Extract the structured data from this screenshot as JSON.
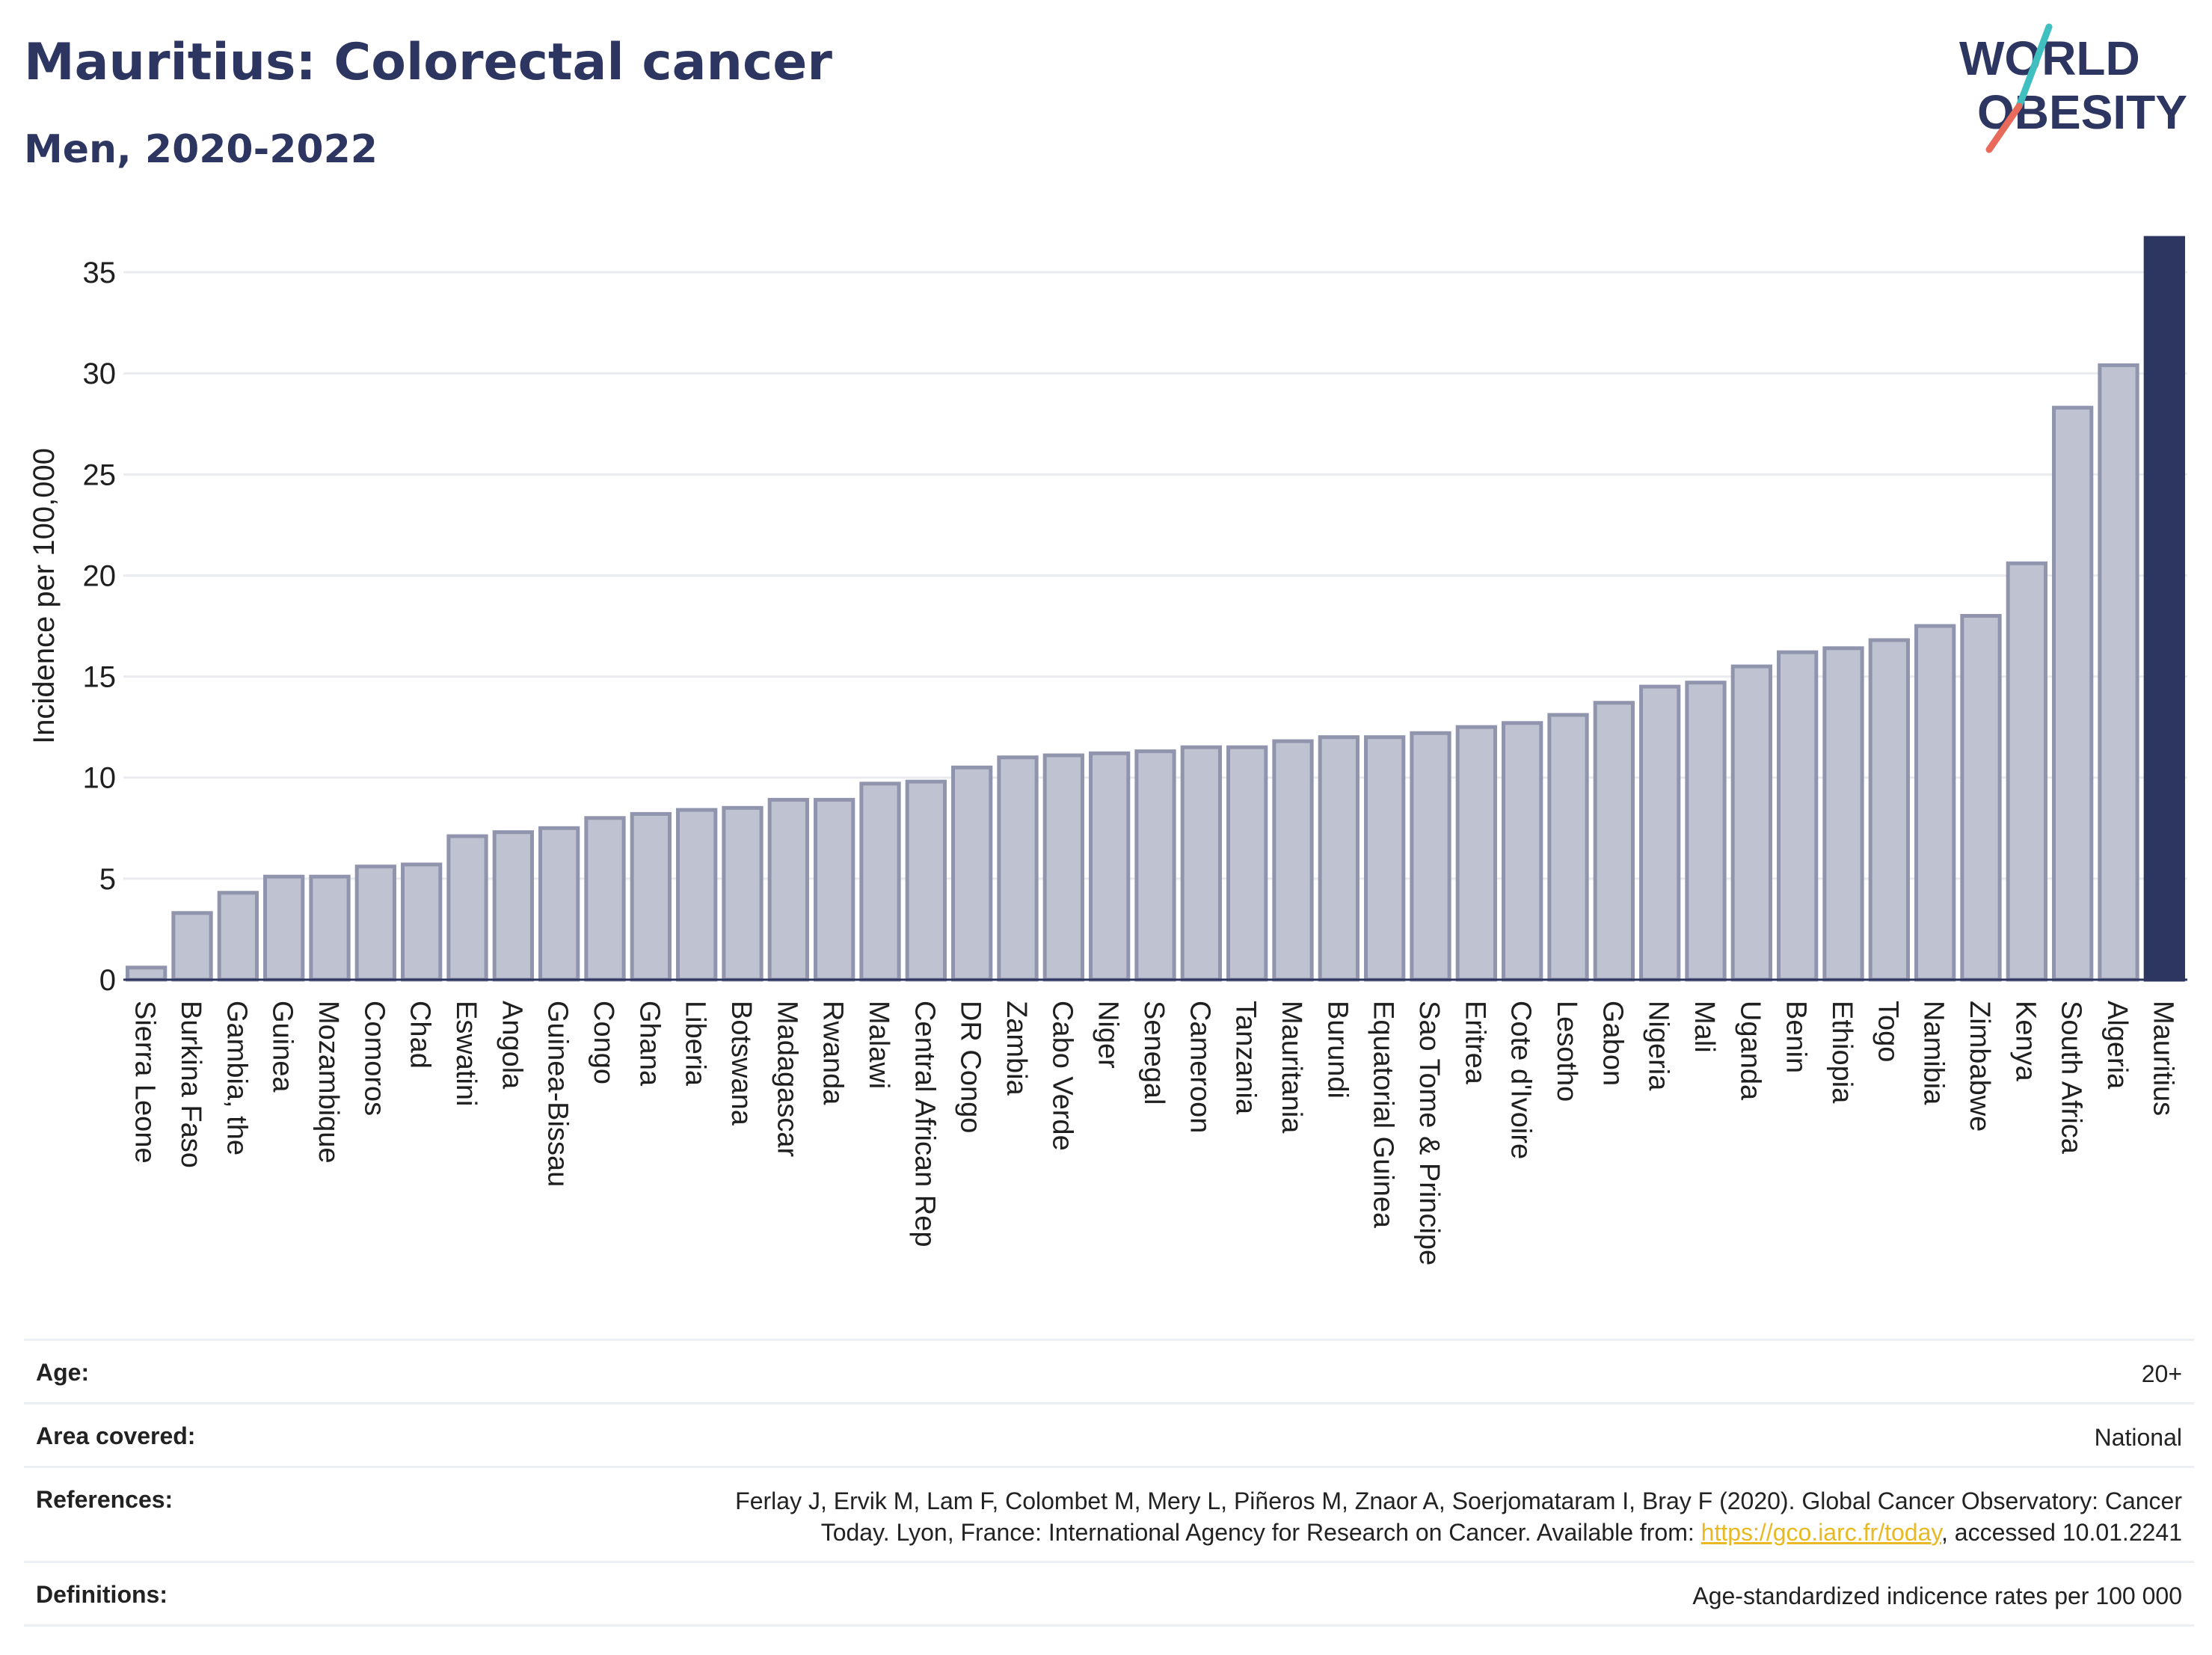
{
  "header": {
    "title": "Mauritius: Colorectal cancer",
    "subtitle": "Men, 2020-2022"
  },
  "logo": {
    "line1": "WORLD",
    "line2": "OBESITY",
    "slash_color_top": "#3fbfbf",
    "slash_color_bottom": "#e86a5a",
    "text_color": "#2d3561"
  },
  "colors": {
    "bar": "#bfc2d0",
    "bar_border": "#9095ad",
    "highlight": "#2d3561",
    "grid": "#e9ebef",
    "axis": "#2d3561"
  },
  "chart_data": {
    "type": "bar",
    "ylabel": "Incidence per 100,000",
    "xlabel": "",
    "ylim": [
      0,
      37
    ],
    "yticks": [
      0,
      5,
      10,
      15,
      20,
      25,
      30,
      35
    ],
    "grid": true,
    "highlight_category": "Mauritius",
    "categories": [
      "Sierra Leone",
      "Burkina Faso",
      "Gambia, the",
      "Guinea",
      "Mozambique",
      "Comoros",
      "Chad",
      "Eswatini",
      "Angola",
      "Guinea-Bissau",
      "Congo",
      "Ghana",
      "Liberia",
      "Botswana",
      "Madagascar",
      "Rwanda",
      "Malawi",
      "Central African Rep",
      "DR Congo",
      "Zambia",
      "Cabo Verde",
      "Niger",
      "Senegal",
      "Cameroon",
      "Tanzania",
      "Mauritania",
      "Burundi",
      "Equatorial Guinea",
      "Sao Tome & Principe",
      "Eritrea",
      "Cote d'Ivoire",
      "Lesotho",
      "Gabon",
      "Nigeria",
      "Mali",
      "Uganda",
      "Benin",
      "Ethiopia",
      "Togo",
      "Namibia",
      "Zimbabwe",
      "Kenya",
      "South Africa",
      "Algeria",
      "Mauritius"
    ],
    "values": [
      0.6,
      3.3,
      4.3,
      5.1,
      5.1,
      5.6,
      5.7,
      7.1,
      7.3,
      7.5,
      8.0,
      8.2,
      8.4,
      8.5,
      8.9,
      8.9,
      9.7,
      9.8,
      10.5,
      11.0,
      11.1,
      11.2,
      11.3,
      11.5,
      11.5,
      11.8,
      12.0,
      12.0,
      12.2,
      12.5,
      12.7,
      13.1,
      13.7,
      14.5,
      14.7,
      15.5,
      16.2,
      16.4,
      16.8,
      17.5,
      18.0,
      20.6,
      28.3,
      30.4,
      36.7
    ]
  },
  "meta": {
    "age_label": "Age:",
    "age_value": "20+",
    "area_label": "Area covered:",
    "area_value": "National",
    "references_label": "References:",
    "references_text_1": "Ferlay J, Ervik M, Lam F, Colombet M, Mery L, Piñeros M, Znaor A, Soerjomataram I, Bray F (2020). Global Cancer Observatory: Cancer",
    "references_text_2": "Today. Lyon, France: International Agency for Research on Cancer. Available from: ",
    "references_link": "https://gco.iarc.fr/today",
    "references_text_3": ", accessed 10.01.2241",
    "definitions_label": "Definitions:",
    "definitions_value": "Age-standardized indicence rates per 100 000"
  }
}
